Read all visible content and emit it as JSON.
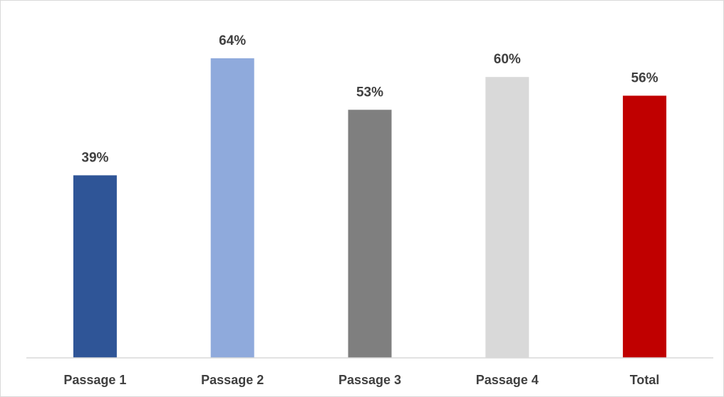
{
  "chart_data": {
    "type": "bar",
    "title": "",
    "xlabel": "",
    "ylabel": "",
    "categories": [
      "Passage 1",
      "Passage 2",
      "Passage 3",
      "Passage 4",
      "Total"
    ],
    "values": [
      39,
      64,
      53,
      60,
      56
    ],
    "value_labels": [
      "39%",
      "64%",
      "53%",
      "60%",
      "56%"
    ],
    "unit": "%",
    "colors": [
      "#2f5597",
      "#8faadc",
      "#7f7f7f",
      "#d9d9d9",
      "#c00000"
    ],
    "ylim": [
      0,
      70
    ],
    "grid": false,
    "legend": "none"
  }
}
